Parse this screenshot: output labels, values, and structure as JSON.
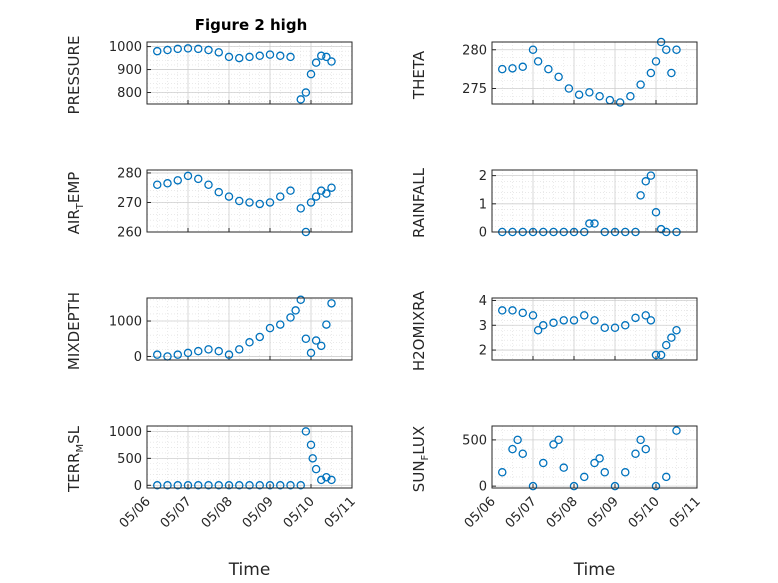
{
  "figure": {
    "title": "Figure 2 high",
    "xlabel": "Time",
    "x_ticks": [
      "05/06",
      "05/07",
      "05/08",
      "05/09",
      "05/10",
      "05/11"
    ]
  },
  "colors": {
    "marker": "#0072BD",
    "axis": "#262626",
    "grid": "#dcdcdc"
  },
  "chart_data": [
    {
      "type": "scatter",
      "ylabel": "PRESSURE",
      "ylim": [
        750,
        1020
      ],
      "yticks": [
        800,
        900,
        1000
      ],
      "x": [
        "05/06 06:00",
        "05/06 12:00",
        "05/06 18:00",
        "05/07 00:00",
        "05/07 06:00",
        "05/07 12:00",
        "05/07 18:00",
        "05/08 00:00",
        "05/08 06:00",
        "05/08 12:00",
        "05/08 18:00",
        "05/09 00:00",
        "05/09 06:00",
        "05/09 12:00",
        "05/09 18:00",
        "05/09 21:00",
        "05/10 00:00",
        "05/10 03:00",
        "05/10 06:00",
        "05/10 09:00",
        "05/10 12:00"
      ],
      "y": [
        980,
        985,
        990,
        992,
        990,
        985,
        975,
        955,
        950,
        955,
        960,
        965,
        960,
        955,
        770,
        800,
        880,
        930,
        960,
        955,
        935
      ]
    },
    {
      "type": "scatter",
      "ylabel": "THETA",
      "ylim": [
        273,
        281
      ],
      "yticks": [
        275,
        280
      ],
      "x": [
        "05/06 06:00",
        "05/06 12:00",
        "05/06 18:00",
        "05/07 00:00",
        "05/07 03:00",
        "05/07 09:00",
        "05/07 15:00",
        "05/07 21:00",
        "05/08 03:00",
        "05/08 09:00",
        "05/08 15:00",
        "05/08 21:00",
        "05/09 03:00",
        "05/09 09:00",
        "05/09 15:00",
        "05/09 21:00",
        "05/10 00:00",
        "05/10 03:00",
        "05/10 06:00",
        "05/10 09:00",
        "05/10 12:00"
      ],
      "y": [
        277.5,
        277.6,
        277.8,
        280,
        278.5,
        277.5,
        276.5,
        275,
        274.2,
        274.5,
        274,
        273.5,
        273.2,
        274,
        275.5,
        277,
        278.5,
        281,
        280,
        277,
        280
      ]
    },
    {
      "type": "scatter",
      "ylabel": "AIR_TEMP",
      "ylim": [
        260,
        281
      ],
      "yticks": [
        260,
        270,
        280
      ],
      "x": [
        "05/06 06:00",
        "05/06 12:00",
        "05/06 18:00",
        "05/07 00:00",
        "05/07 06:00",
        "05/07 12:00",
        "05/07 18:00",
        "05/08 00:00",
        "05/08 06:00",
        "05/08 12:00",
        "05/08 18:00",
        "05/09 00:00",
        "05/09 06:00",
        "05/09 12:00",
        "05/09 18:00",
        "05/09 21:00",
        "05/10 00:00",
        "05/10 03:00",
        "05/10 06:00",
        "05/10 09:00",
        "05/10 12:00"
      ],
      "y": [
        276,
        276.5,
        277.5,
        279,
        278,
        276,
        273.5,
        272,
        270.5,
        270,
        269.5,
        270,
        272,
        274,
        268,
        260,
        270,
        272,
        274,
        273,
        275
      ]
    },
    {
      "type": "scatter",
      "ylabel": "RAINFALL",
      "ylim": [
        0,
        2.2
      ],
      "yticks": [
        0,
        1,
        2
      ],
      "x": [
        "05/06 06:00",
        "05/06 12:00",
        "05/06 18:00",
        "05/07 00:00",
        "05/07 06:00",
        "05/07 12:00",
        "05/07 18:00",
        "05/08 00:00",
        "05/08 06:00",
        "05/08 09:00",
        "05/08 12:00",
        "05/08 18:00",
        "05/09 00:00",
        "05/09 06:00",
        "05/09 12:00",
        "05/09 15:00",
        "05/09 18:00",
        "05/09 21:00",
        "05/10 00:00",
        "05/10 03:00",
        "05/10 06:00",
        "05/10 12:00"
      ],
      "y": [
        0,
        0,
        0,
        0,
        0,
        0,
        0,
        0,
        0,
        0.3,
        0.3,
        0,
        0,
        0,
        0,
        1.3,
        1.8,
        2.0,
        0.7,
        0.1,
        0,
        0
      ]
    },
    {
      "type": "scatter",
      "ylabel": "MIXDEPTH",
      "ylim": [
        -100,
        1650
      ],
      "yticks": [
        0,
        1000
      ],
      "x": [
        "05/06 06:00",
        "05/06 12:00",
        "05/06 18:00",
        "05/07 00:00",
        "05/07 06:00",
        "05/07 12:00",
        "05/07 18:00",
        "05/08 00:00",
        "05/08 06:00",
        "05/08 12:00",
        "05/08 18:00",
        "05/09 00:00",
        "05/09 06:00",
        "05/09 12:00",
        "05/09 15:00",
        "05/09 18:00",
        "05/09 21:00",
        "05/10 00:00",
        "05/10 03:00",
        "05/10 06:00",
        "05/10 09:00",
        "05/10 12:00"
      ],
      "y": [
        50,
        0,
        50,
        100,
        150,
        200,
        150,
        50,
        200,
        400,
        550,
        800,
        900,
        1100,
        1300,
        1600,
        500,
        100,
        450,
        300,
        900,
        1500
      ]
    },
    {
      "type": "scatter",
      "ylabel": "H2OMIXRA",
      "ylim": [
        1.6,
        4.1
      ],
      "yticks": [
        2,
        3,
        4
      ],
      "x": [
        "05/06 06:00",
        "05/06 12:00",
        "05/06 18:00",
        "05/07 00:00",
        "05/07 03:00",
        "05/07 06:00",
        "05/07 12:00",
        "05/07 18:00",
        "05/08 00:00",
        "05/08 06:00",
        "05/08 12:00",
        "05/08 18:00",
        "05/09 00:00",
        "05/09 06:00",
        "05/09 12:00",
        "05/09 18:00",
        "05/09 21:00",
        "05/10 00:00",
        "05/10 03:00",
        "05/10 06:00",
        "05/10 09:00",
        "05/10 12:00"
      ],
      "y": [
        3.6,
        3.6,
        3.5,
        3.4,
        2.8,
        3.0,
        3.1,
        3.2,
        3.2,
        3.4,
        3.2,
        2.9,
        2.9,
        3.0,
        3.3,
        3.4,
        3.2,
        1.8,
        1.8,
        2.2,
        2.5,
        2.8
      ]
    },
    {
      "type": "scatter",
      "ylabel": "TERR_MSL",
      "ylim": [
        -50,
        1100
      ],
      "yticks": [
        0,
        500,
        1000
      ],
      "x": [
        "05/06 06:00",
        "05/06 12:00",
        "05/06 18:00",
        "05/07 00:00",
        "05/07 06:00",
        "05/07 12:00",
        "05/07 18:00",
        "05/08 00:00",
        "05/08 06:00",
        "05/08 12:00",
        "05/08 18:00",
        "05/09 00:00",
        "05/09 06:00",
        "05/09 12:00",
        "05/09 18:00",
        "05/09 21:00",
        "05/10 00:00",
        "05/10 01:00",
        "05/10 03:00",
        "05/10 06:00",
        "05/10 09:00",
        "05/10 12:00"
      ],
      "y": [
        0,
        0,
        0,
        0,
        0,
        0,
        0,
        0,
        0,
        0,
        0,
        0,
        0,
        0,
        0,
        1000,
        750,
        500,
        300,
        100,
        150,
        100
      ]
    },
    {
      "type": "scatter",
      "ylabel": "SUN_FLUX",
      "ylim": [
        -20,
        650
      ],
      "yticks": [
        0,
        500
      ],
      "x": [
        "05/06 06:00",
        "05/06 12:00",
        "05/06 15:00",
        "05/06 18:00",
        "05/07 00:00",
        "05/07 06:00",
        "05/07 12:00",
        "05/07 15:00",
        "05/07 18:00",
        "05/08 00:00",
        "05/08 06:00",
        "05/08 12:00",
        "05/08 15:00",
        "05/08 18:00",
        "05/09 00:00",
        "05/09 06:00",
        "05/09 12:00",
        "05/09 15:00",
        "05/09 18:00",
        "05/10 00:00",
        "05/10 06:00",
        "05/10 12:00"
      ],
      "y": [
        150,
        400,
        500,
        350,
        0,
        250,
        450,
        500,
        200,
        0,
        100,
        250,
        300,
        150,
        0,
        150,
        350,
        500,
        400,
        0,
        100,
        600
      ]
    }
  ]
}
